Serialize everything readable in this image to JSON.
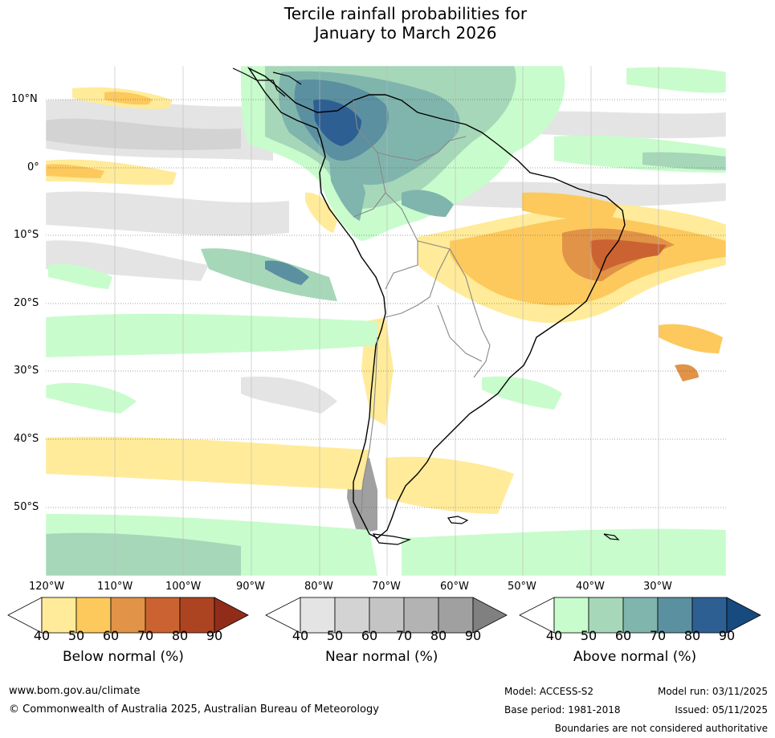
{
  "title": {
    "line1": "Tercile rainfall probabilities for",
    "line2": "January to March 2026"
  },
  "map": {
    "region": "South America",
    "lat_labels": [
      "10°N",
      "0°",
      "10°S",
      "20°S",
      "30°S",
      "40°S",
      "50°S"
    ],
    "lon_labels": [
      "120°W",
      "110°W",
      "100°W",
      "90°W",
      "80°W",
      "70°W",
      "60°W",
      "50°W",
      "40°W",
      "30°W"
    ],
    "lat_range": [
      15,
      -60
    ],
    "lon_range": [
      -120,
      -20
    ],
    "features": [
      "wet signal north-west South America",
      "dry signal eastern Brazil",
      "near normal eastern Pacific"
    ]
  },
  "legends": [
    {
      "label": "Below normal (%)",
      "ticks": [
        "40",
        "50",
        "60",
        "70",
        "80",
        "90"
      ],
      "colors": [
        "#ffeb99",
        "#fdc95c",
        "#e19347",
        "#ca6331",
        "#ac4422",
        "#922c1a"
      ]
    },
    {
      "label": "Near normal (%)",
      "ticks": [
        "40",
        "50",
        "60",
        "70",
        "80",
        "90"
      ],
      "colors": [
        "#e4e4e4",
        "#d3d3d3",
        "#c4c4c4",
        "#b3b3b3",
        "#a0a0a0",
        "#808080"
      ]
    },
    {
      "label": "Above normal (%)",
      "ticks": [
        "40",
        "50",
        "60",
        "70",
        "80",
        "90"
      ],
      "colors": [
        "#c8fccc",
        "#a6d7b9",
        "#80b5ad",
        "#5b90a0",
        "#2e5f92",
        "#174a7e"
      ]
    }
  ],
  "footer": {
    "website": "www.bom.gov.au/climate",
    "copyright": "© Commonwealth of Australia 2025, Australian Bureau of Meteorology",
    "model": "Model: ACCESS-S2",
    "base_period": "Base period: 1981-2018",
    "model_run": "Model run: 03/11/2025",
    "issued": "Issued: 05/11/2025",
    "disclaimer": "Boundaries are not considered authoritative"
  }
}
